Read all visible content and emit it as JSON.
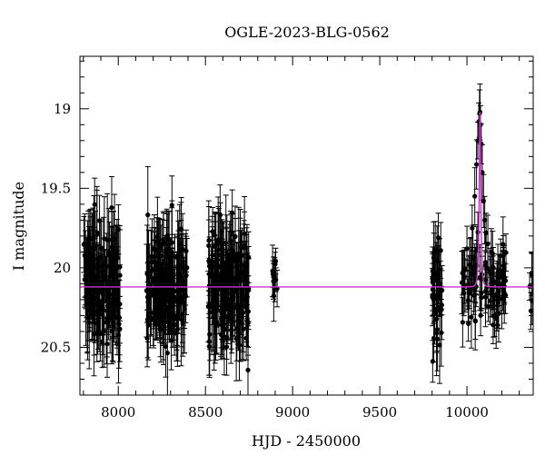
{
  "chart_data": {
    "type": "scatter",
    "title": "OGLE-2023-BLG-0562",
    "xlabel": "HJD - 2450000",
    "ylabel": "I magnitude",
    "xlim": [
      7780,
      10380
    ],
    "ylim": [
      20.8,
      18.67
    ],
    "y_inverted": true,
    "xticks": [
      8000,
      8500,
      9000,
      9500,
      10000
    ],
    "yticks": [
      19,
      19.5,
      20,
      20.5
    ],
    "grid": false,
    "colors": {
      "data": "#000000",
      "model": "#cc33cc"
    },
    "series": [
      {
        "kind": "photometry",
        "seasons": [
          {
            "x_range": [
              7800,
              8010
            ],
            "count": 150,
            "mag_center": 20.1,
            "scatter": 0.17,
            "err": 0.22
          },
          {
            "x_range": [
              8160,
              8395
            ],
            "count": 170,
            "mag_center": 20.1,
            "scatter": 0.17,
            "err": 0.22
          },
          {
            "x_range": [
              8515,
              8750
            ],
            "count": 180,
            "mag_center": 20.12,
            "scatter": 0.18,
            "err": 0.22
          },
          {
            "x_range": [
              8885,
              8925
            ],
            "count": 10,
            "mag_center": 20.1,
            "scatter": 0.08,
            "err": 0.12
          },
          {
            "x_range": [
              9800,
              9860
            ],
            "count": 40,
            "mag_center": 20.15,
            "scatter": 0.15,
            "err": 0.2
          },
          {
            "x_range": [
              9970,
              10230
            ],
            "count": 90,
            "mag_center": 20.12,
            "scatter": 0.12,
            "err": 0.15
          },
          {
            "x_range": [
              10350,
              10375
            ],
            "count": 5,
            "mag_center": 20.15,
            "scatter": 0.1,
            "err": 0.12
          }
        ]
      },
      {
        "kind": "model",
        "baseline": 20.12,
        "peak_x": 10075,
        "peak_mag": 19.02,
        "tE": 8.5
      }
    ],
    "event_points": [
      [
        10000,
        19.88
      ],
      [
        10015,
        19.98
      ],
      [
        10030,
        19.75
      ],
      [
        10045,
        19.55
      ],
      [
        10055,
        19.35
      ],
      [
        10062,
        19.2
      ],
      [
        10068,
        19.08
      ],
      [
        10072,
        19.03
      ],
      [
        10075,
        19.02
      ],
      [
        10078,
        19.1
      ],
      [
        10082,
        19.22
      ],
      [
        10088,
        19.4
      ],
      [
        10095,
        19.58
      ],
      [
        10102,
        19.7
      ],
      [
        10110,
        19.78
      ],
      [
        10120,
        19.85
      ],
      [
        10130,
        20.02
      ],
      [
        10140,
        19.9
      ],
      [
        10150,
        20.08
      ]
    ]
  }
}
